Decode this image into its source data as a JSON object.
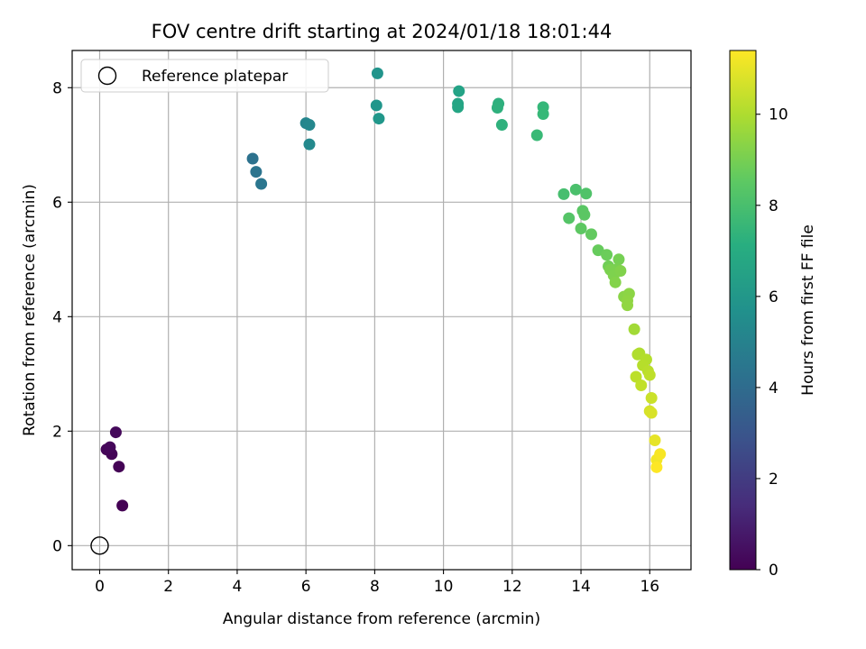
{
  "chart_data": {
    "type": "scatter",
    "title": "FOV centre drift starting at 2024/01/18 18:01:44",
    "xlabel": "Angular distance from reference (arcmin)",
    "ylabel": "Rotation from reference (arcmin)",
    "xlim": [
      -0.8,
      17.2
    ],
    "ylim": [
      -0.42,
      8.65
    ],
    "xticks": [
      0,
      2,
      4,
      6,
      8,
      10,
      12,
      14,
      16
    ],
    "yticks": [
      0,
      2,
      4,
      6,
      8
    ],
    "grid": true,
    "legend": {
      "placement": "upper-left",
      "entries": [
        "Reference platepar"
      ]
    },
    "reference_point": {
      "x": 0,
      "y": 0,
      "label": "Reference platepar"
    },
    "colorbar": {
      "label": "Hours from first FF file",
      "colormap": "viridis",
      "range": [
        0,
        11.4
      ],
      "ticks": [
        0,
        2,
        4,
        6,
        8,
        10
      ]
    },
    "series": [
      {
        "x": [
          0.66,
          0.56,
          0.35,
          0.2,
          0.3,
          0.47,
          4.45,
          4.55,
          4.7,
          6.0,
          6.1,
          6.1,
          8.08,
          8.05,
          8.12,
          10.45,
          10.42,
          10.42,
          11.6,
          11.57,
          11.7,
          12.9,
          12.9,
          12.72,
          13.5,
          13.85,
          14.15,
          13.65,
          14.05,
          14.1,
          14.0,
          14.3,
          14.5,
          14.75,
          14.8,
          15.1,
          15.05,
          14.85,
          14.95,
          15.15,
          15.0,
          15.25,
          15.4,
          15.35,
          15.35,
          15.55,
          15.7,
          15.65,
          15.9,
          15.8,
          15.95,
          15.6,
          16.0,
          15.75,
          16.05,
          16.0,
          16.05,
          16.15,
          16.2,
          16.3,
          16.2
        ],
        "y": [
          0.7,
          1.38,
          1.6,
          1.68,
          1.72,
          1.98,
          6.76,
          6.53,
          6.32,
          7.38,
          7.35,
          7.01,
          8.25,
          7.69,
          7.46,
          7.94,
          7.72,
          7.66,
          7.72,
          7.65,
          7.35,
          7.66,
          7.54,
          7.17,
          6.14,
          6.22,
          6.15,
          5.72,
          5.85,
          5.78,
          5.54,
          5.44,
          5.16,
          5.08,
          4.88,
          5.0,
          4.83,
          4.82,
          4.72,
          4.8,
          4.6,
          4.35,
          4.4,
          4.28,
          4.2,
          3.78,
          3.36,
          3.34,
          3.25,
          3.15,
          3.05,
          2.95,
          2.98,
          2.8,
          2.58,
          2.35,
          2.32,
          1.84,
          1.5,
          1.6,
          1.37
        ],
        "hours": [
          0.0,
          0.05,
          0.1,
          0.15,
          0.2,
          0.25,
          4.3,
          4.4,
          4.5,
          5.2,
          5.3,
          5.4,
          5.9,
          5.95,
          6.0,
          6.6,
          6.65,
          6.7,
          7.2,
          7.25,
          7.3,
          7.6,
          7.65,
          7.7,
          8.0,
          8.1,
          8.2,
          8.3,
          8.4,
          8.45,
          8.5,
          8.6,
          8.7,
          8.8,
          8.9,
          9.0,
          9.05,
          9.1,
          9.15,
          9.2,
          9.25,
          9.35,
          9.4,
          9.45,
          9.5,
          9.8,
          10.0,
          10.05,
          10.1,
          10.15,
          10.2,
          10.25,
          10.3,
          10.35,
          10.5,
          10.7,
          10.75,
          11.0,
          11.2,
          11.3,
          11.4
        ]
      }
    ]
  }
}
